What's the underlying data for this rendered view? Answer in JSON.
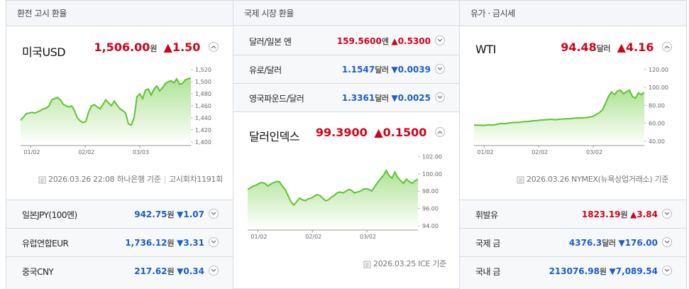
{
  "exchange": {
    "title": "환전 고시 환율",
    "main": {
      "name": "미국USD",
      "value": "1,506.00",
      "unit": "원",
      "change": "1.50",
      "dir": "up"
    },
    "footer": {
      "date": "2026.03.26 22:08 하나은행 기준",
      "extra": "고시회차1191회"
    },
    "rows": [
      {
        "name": "일본JPY(100엔)",
        "value": "942.75",
        "unit": "원",
        "change": "1.07",
        "dir": "down"
      },
      {
        "name": "유럽연합EUR",
        "value": "1,736.12",
        "unit": "원",
        "change": "3.31",
        "dir": "down"
      },
      {
        "name": "중국CNY",
        "value": "217.62",
        "unit": "원",
        "change": "0.34",
        "dir": "down"
      }
    ]
  },
  "intl": {
    "title": "국제 시장 환율",
    "rows": [
      {
        "name": "달러/일본 엔",
        "value": "159.5600",
        "unit": "엔",
        "change": "0.5300",
        "dir": "up"
      },
      {
        "name": "유로/달러",
        "value": "1.1547",
        "unit": "달러",
        "change": "0.0039",
        "dir": "down"
      },
      {
        "name": "영국파운드/달러",
        "value": "1.3361",
        "unit": "달러",
        "change": "0.0025",
        "dir": "down"
      }
    ],
    "main": {
      "name": "달러인덱스",
      "value": "99.3900",
      "unit": "",
      "change": "0.1500",
      "dir": "up"
    },
    "footer": {
      "date": "2026.03.25 ICE 기준"
    }
  },
  "oil": {
    "title": "유가 · 금시세",
    "main": {
      "name": "WTI",
      "value": "94.48",
      "unit": "달러",
      "change": "4.16",
      "dir": "up"
    },
    "footer": {
      "date": "2026.03.26 NYMEX(뉴욕상업거래소) 기준"
    },
    "rows": [
      {
        "name": "휘발유",
        "value": "1823.19",
        "unit": "원",
        "change": "3.84",
        "dir": "up"
      },
      {
        "name": "국제 금",
        "value": "4376.3",
        "unit": "달러",
        "change": "176.00",
        "dir": "down"
      },
      {
        "name": "국내 금",
        "value": "213076.98",
        "unit": "원",
        "change": "7,089.54",
        "dir": "down"
      }
    ]
  },
  "chart_data": [
    {
      "type": "area",
      "x_ticks": [
        "01/02",
        "02/02",
        "03/03"
      ],
      "y_ticks": [
        1400,
        1420,
        1440,
        1460,
        1480,
        1500,
        1520
      ],
      "ylim": [
        1395,
        1525
      ],
      "values": [
        1436,
        1441,
        1447,
        1448,
        1449,
        1448,
        1450,
        1452,
        1455,
        1456,
        1460,
        1470,
        1472,
        1474,
        1470,
        1463,
        1460,
        1458,
        1460,
        1452,
        1440,
        1435,
        1432,
        1434,
        1450,
        1460,
        1462,
        1458,
        1455,
        1462,
        1470,
        1465,
        1460,
        1468,
        1461,
        1455,
        1452,
        1448,
        1430,
        1428,
        1440,
        1475,
        1480,
        1472,
        1486,
        1488,
        1478,
        1488,
        1493,
        1485,
        1490,
        1497,
        1500,
        1502,
        1498,
        1505,
        1496,
        1497,
        1503,
        1505,
        1506
      ]
    },
    {
      "type": "area",
      "x_ticks": [
        "01/02",
        "02/02",
        "03/02"
      ],
      "y_ticks": [
        94.0,
        96.0,
        98.0,
        100.0,
        102.0
      ],
      "ylim": [
        93.6,
        102.6
      ],
      "values": [
        98.2,
        98.4,
        98.6,
        98.7,
        98.9,
        99.0,
        98.9,
        98.6,
        98.8,
        99.0,
        99.1,
        99.1,
        98.6,
        98.2,
        97.5,
        96.8,
        96.4,
        96.8,
        97.2,
        97.0,
        96.9,
        97.1,
        97.2,
        97.4,
        97.6,
        97.5,
        97.2,
        96.9,
        97.0,
        97.3,
        97.5,
        97.8,
        97.9,
        97.8,
        98.0,
        98.2,
        98.1,
        97.8,
        97.9,
        98.0,
        98.2,
        98.3,
        98.2,
        98.0,
        98.5,
        99.0,
        99.4,
        99.8,
        100.4,
        99.8,
        99.5,
        100.2,
        99.6,
        99.2,
        98.9,
        99.4,
        99.1,
        98.9,
        99.2,
        99.39
      ]
    },
    {
      "type": "area",
      "x_ticks": [
        "01/02",
        "02/02",
        "03/02"
      ],
      "y_ticks": [
        40.0,
        60.0,
        80.0,
        100.0,
        120.0
      ],
      "ylim": [
        36,
        123
      ],
      "values": [
        58,
        58,
        57.8,
        57.5,
        58,
        58.5,
        57.8,
        58.5,
        59,
        60,
        59.5,
        60,
        60.5,
        60.8,
        61,
        61,
        61.5,
        62,
        62,
        62.5,
        63,
        63,
        63.5,
        63.8,
        64,
        64.2,
        64.5,
        64,
        64.3,
        64.6,
        64.8,
        65,
        65.2,
        65.5,
        65.8,
        66,
        66,
        66.2,
        66.5,
        67,
        68,
        70,
        72,
        75,
        82,
        90,
        95,
        92,
        96,
        97,
        93,
        95,
        97,
        90,
        88,
        94,
        92,
        94.48
      ]
    }
  ]
}
